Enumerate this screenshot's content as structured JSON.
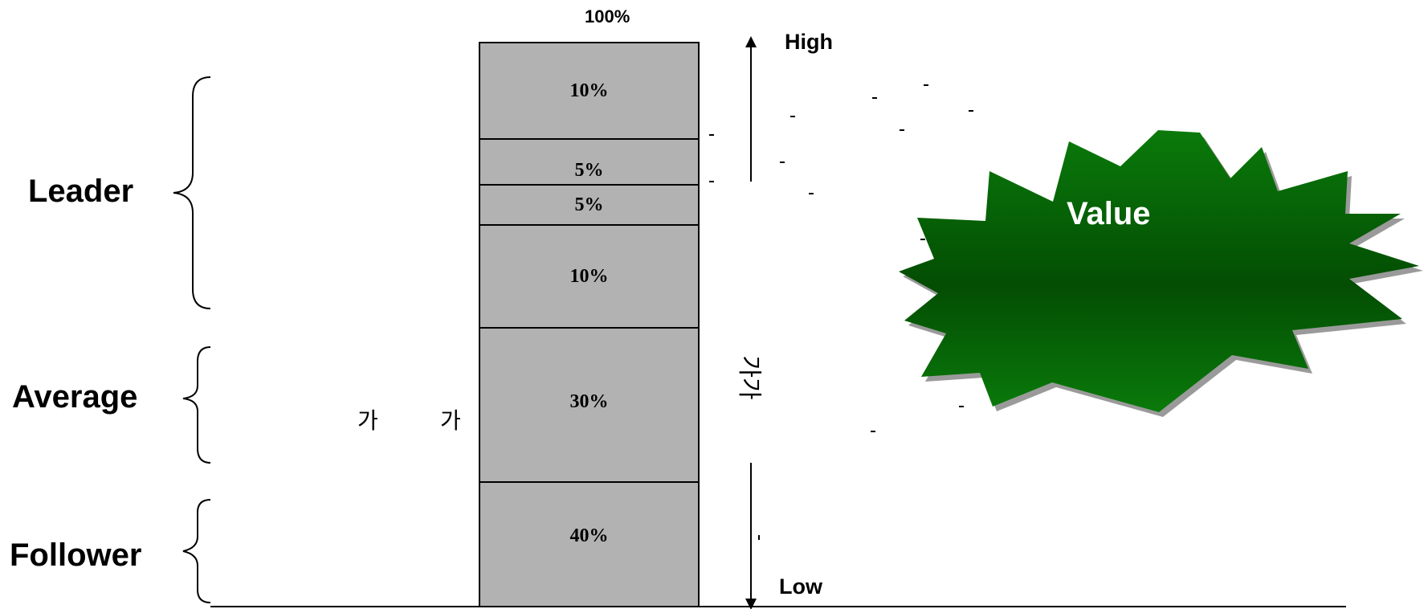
{
  "top_label": "100%",
  "scale": {
    "high": "High",
    "low": "Low"
  },
  "groups": [
    {
      "label": "Leader"
    },
    {
      "label": "Average"
    },
    {
      "label": "Follower"
    }
  ],
  "segments": [
    {
      "label": "10%"
    },
    {
      "label": "5%"
    },
    {
      "label": "5%"
    },
    {
      "label": "10%"
    },
    {
      "label": "30%"
    },
    {
      "label": "40%"
    }
  ],
  "korean_labels": {
    "left_1": "가",
    "left_2": "가",
    "vertical": "가가"
  },
  "badge": {
    "label": "Value",
    "color_top": "#0a7a0a",
    "color_mid": "#034d03",
    "shadow": "#9a9a9a"
  },
  "colors": {
    "segment_fill": "#b2b2b2"
  }
}
